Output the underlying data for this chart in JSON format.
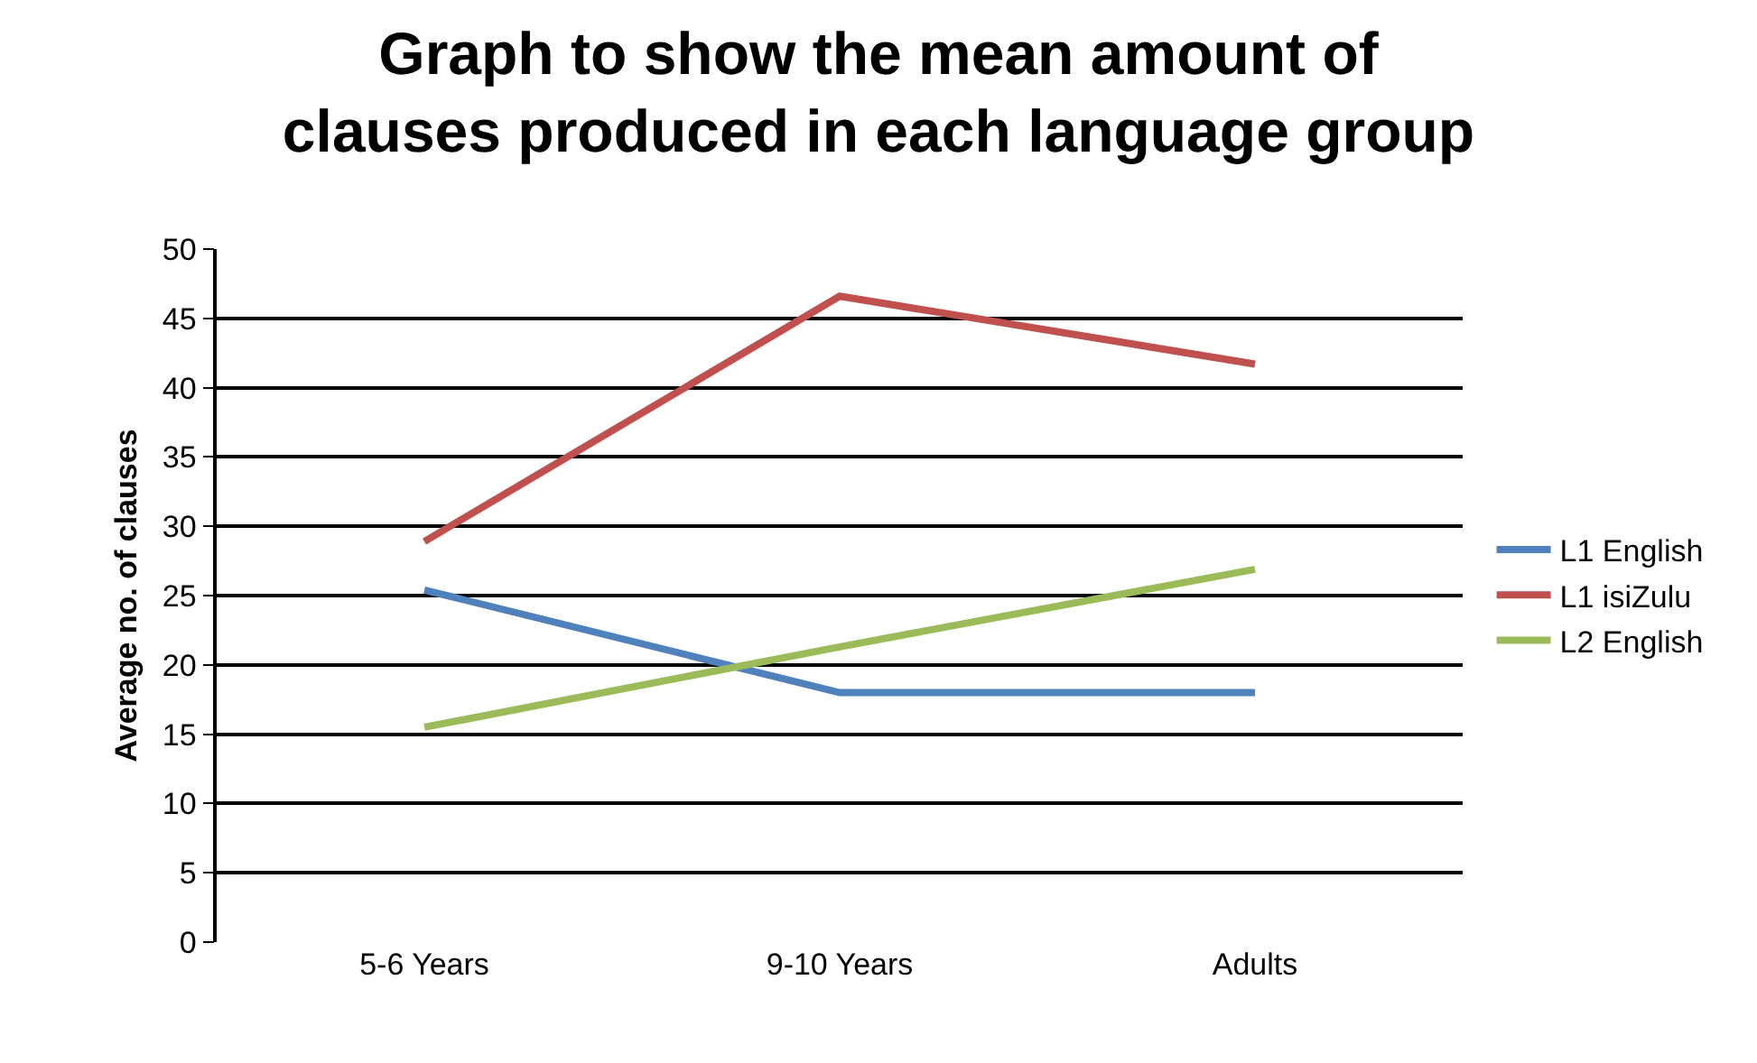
{
  "chart_data": {
    "type": "line",
    "title": "Graph to show the mean amount of clauses produced in each language group",
    "ylabel": "Average no. of clauses",
    "categories": [
      "5-6 Years",
      "9-10 Years",
      "Adults"
    ],
    "series": [
      {
        "name": "L1 English",
        "color": "#4f81bd",
        "values": [
          25.4,
          18.0,
          18.0
        ]
      },
      {
        "name": "L1 isiZulu",
        "color": "#c0504d",
        "values": [
          28.9,
          46.6,
          41.7
        ]
      },
      {
        "name": "L2 English",
        "color": "#9bbb59",
        "values": [
          15.5,
          21.3,
          26.9
        ]
      }
    ],
    "ylim": [
      0,
      50
    ],
    "yticks": [
      0,
      5,
      10,
      15,
      20,
      25,
      30,
      35,
      40,
      45,
      50
    ],
    "grid": "y",
    "legend": "right",
    "marker": "none",
    "line_style": "solid"
  }
}
